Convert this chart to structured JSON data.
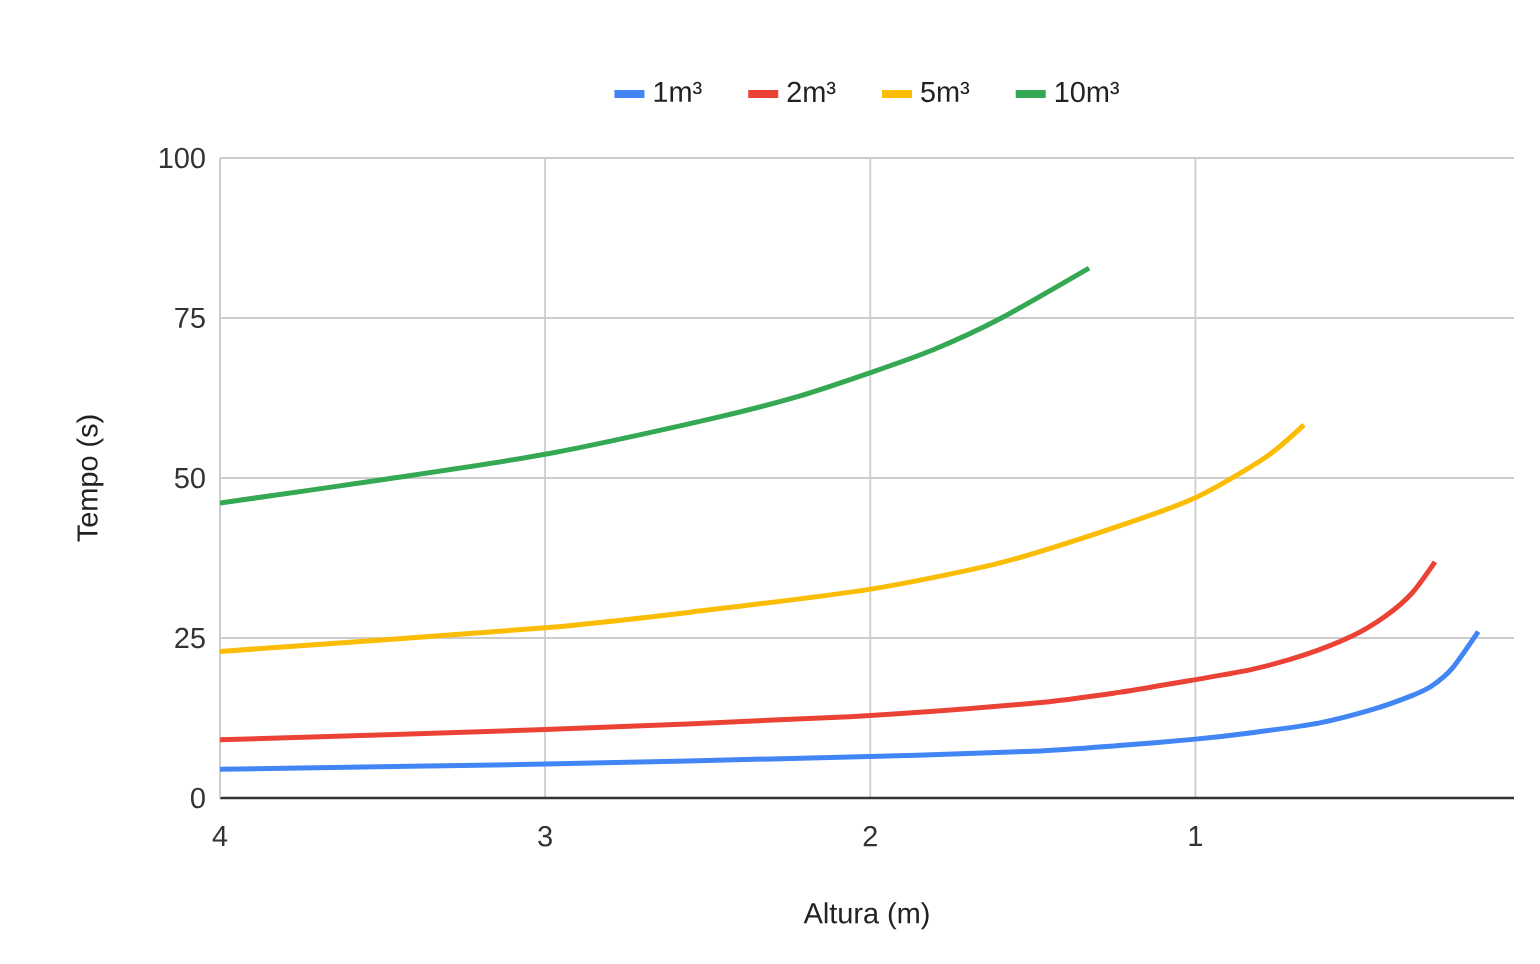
{
  "chart_data": {
    "type": "line",
    "xlabel": "Altura (m)",
    "ylabel": "Tempo (s)",
    "xlim": [
      4,
      0.02
    ],
    "xticks": [
      4,
      3,
      2,
      1
    ],
    "ylim": [
      0,
      100
    ],
    "yticks": [
      0,
      25,
      50,
      75,
      100
    ],
    "grid": true,
    "legend": "top",
    "marker": "none",
    "line_style": "solid",
    "series": [
      {
        "name": "1m³",
        "color": "#4285f4",
        "x": [
          4,
          3,
          2.064,
          1.5,
          1.235,
          1,
          0.826,
          0.621,
          0.457,
          0.334,
          0.273,
          0.211,
          0.13
        ],
        "values": [
          4.5,
          5.3,
          6.4,
          7.3,
          8.2,
          9.2,
          10.2,
          11.7,
          13.8,
          16.0,
          17.5,
          20.2,
          26.0
        ]
      },
      {
        "name": "2m³",
        "color": "#ea4335",
        "x": [
          4,
          3,
          2.064,
          1.5,
          1.235,
          1,
          0.826,
          0.662,
          0.518,
          0.416,
          0.334,
          0.263
        ],
        "values": [
          9.1,
          10.7,
          12.7,
          14.8,
          16.5,
          18.5,
          20.1,
          22.4,
          25.3,
          28.4,
          32.0,
          36.9
        ]
      },
      {
        "name": "5m³",
        "color": "#fbbc04",
        "x": [
          4,
          3,
          2.494,
          2.003,
          1.604,
          1.27,
          1,
          0.785,
          0.666
        ],
        "values": [
          22.9,
          26.6,
          29.4,
          32.6,
          36.7,
          41.9,
          46.9,
          53.2,
          58.3
        ]
      },
      {
        "name": "10m³",
        "color": "#34a853",
        "x": [
          4,
          3.518,
          3,
          2.494,
          2.218,
          2.003,
          1.808,
          1.604,
          1.327
        ],
        "values": [
          46.1,
          49.6,
          53.7,
          59.2,
          62.8,
          66.4,
          70.0,
          74.8,
          82.8
        ]
      }
    ]
  }
}
